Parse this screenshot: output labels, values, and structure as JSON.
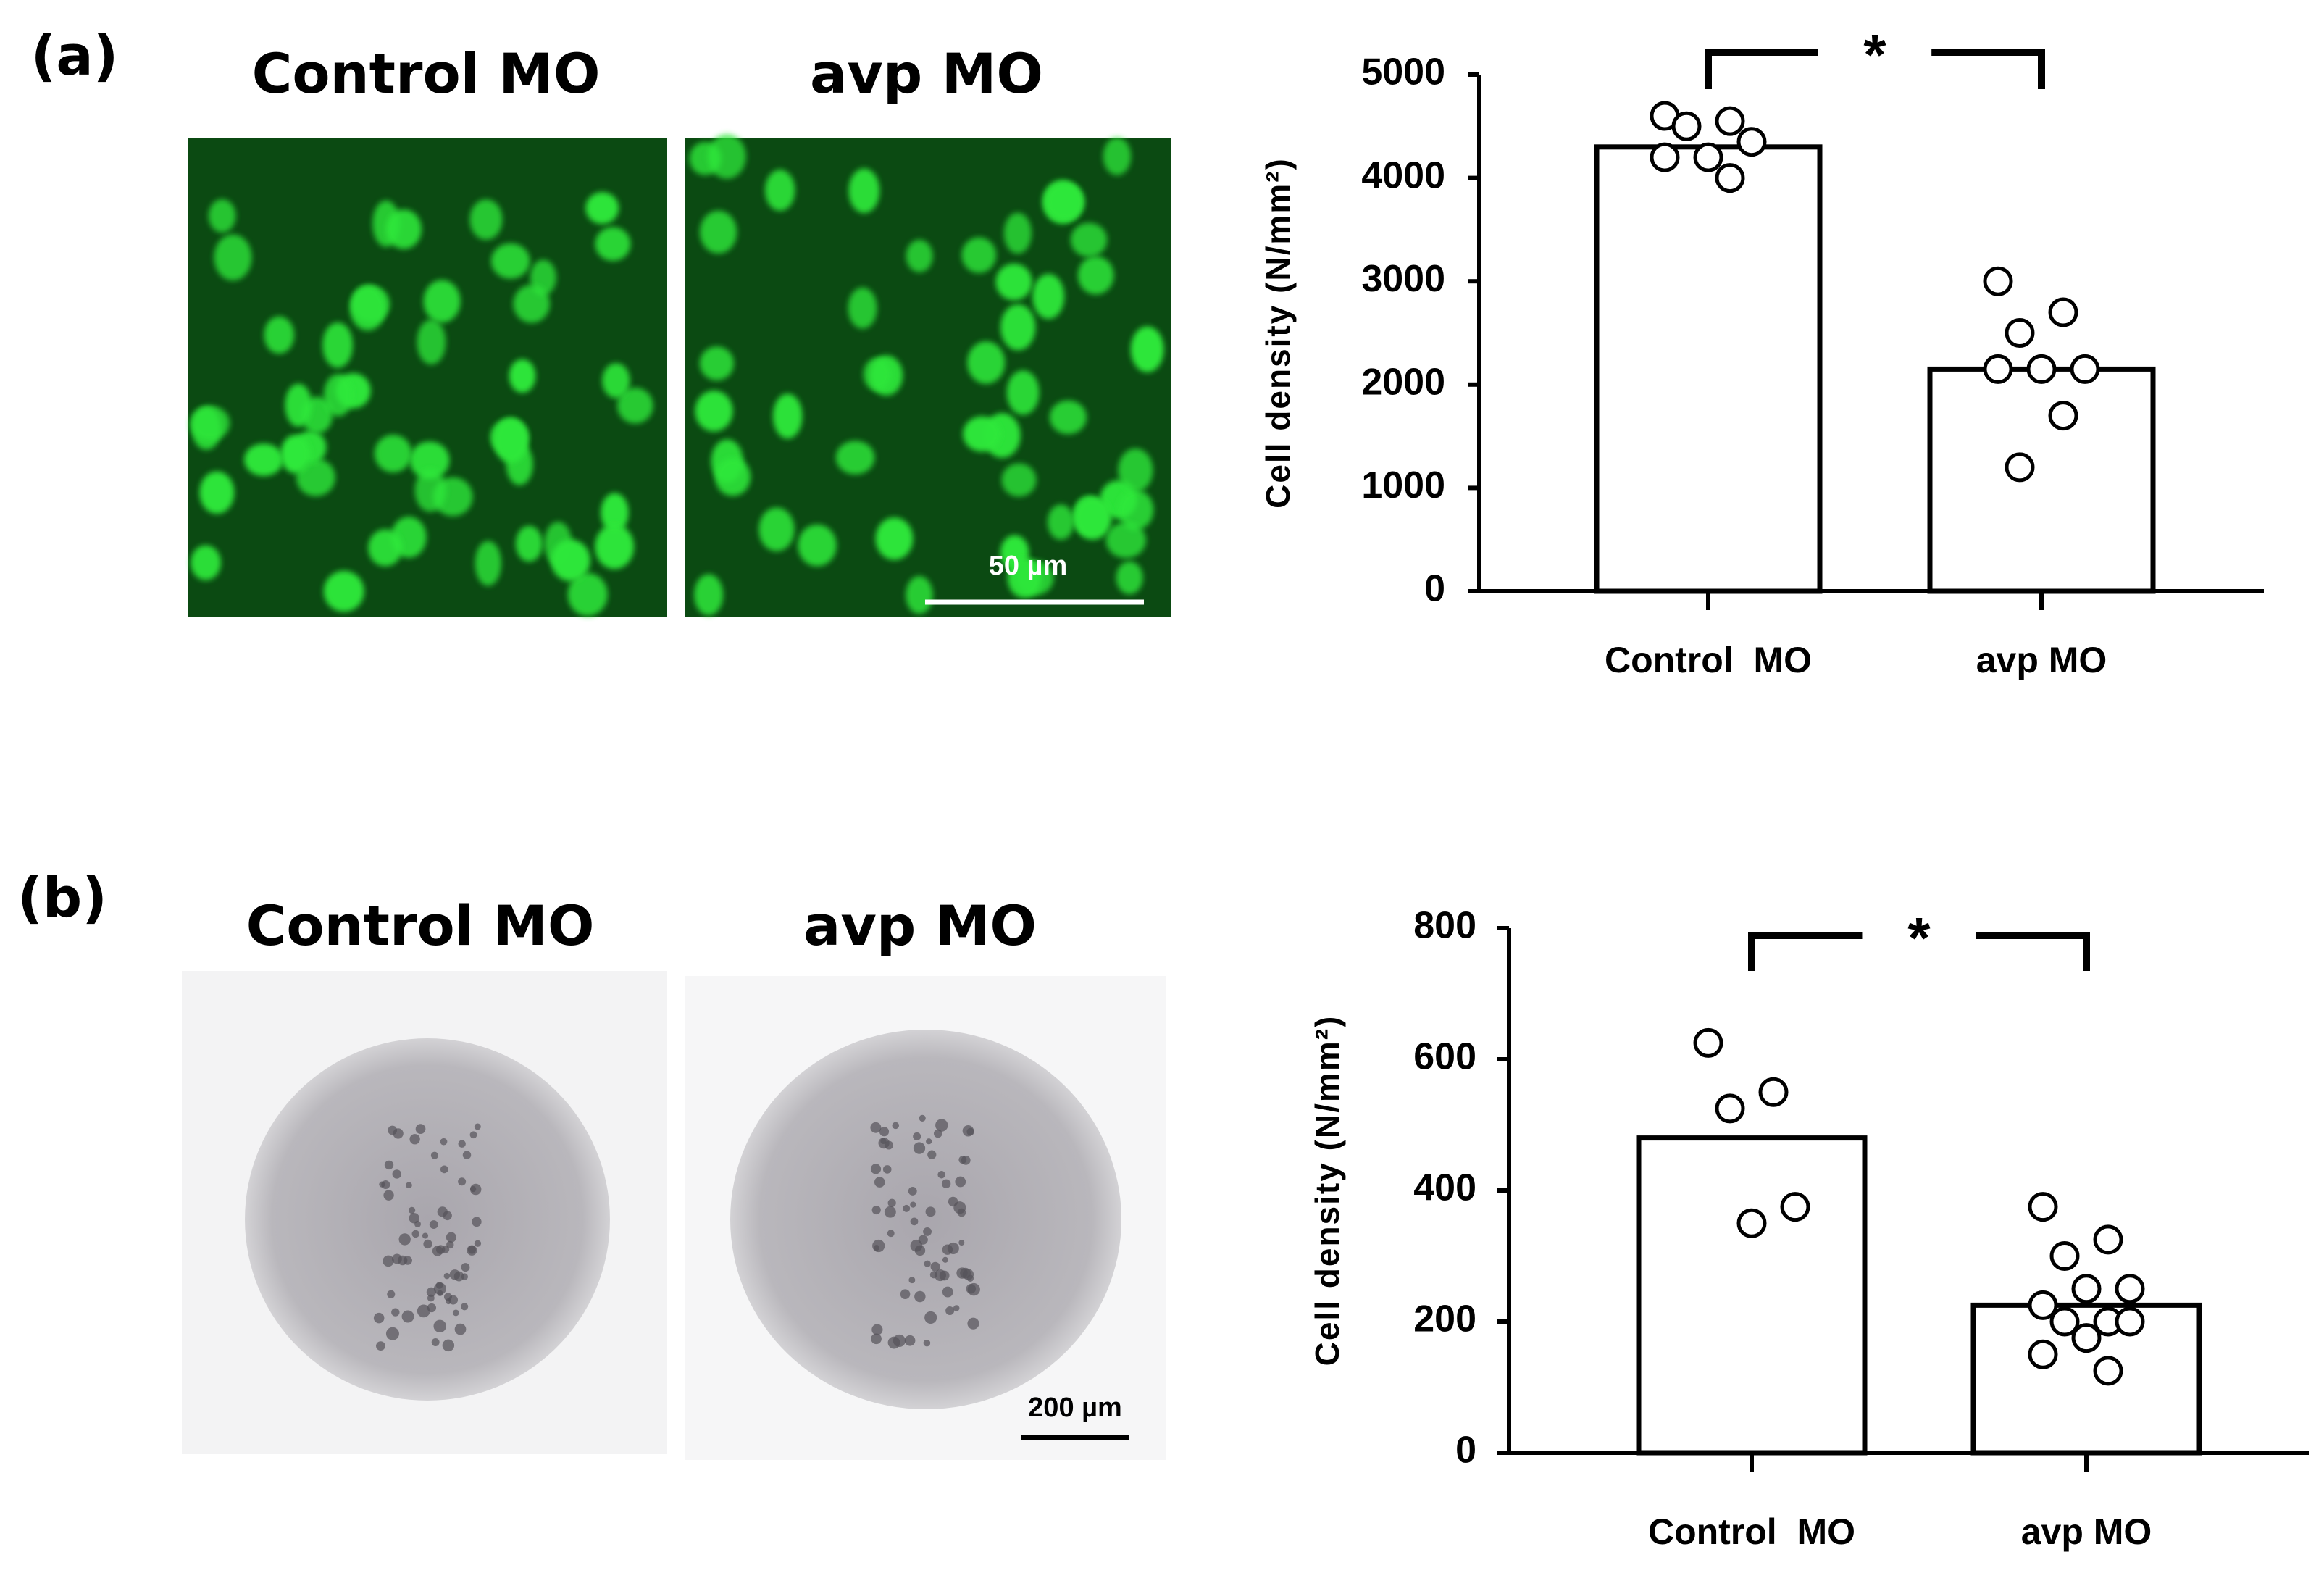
{
  "panels": [
    {
      "label": "(a)",
      "image_titles": [
        "Control MO",
        "avp MO"
      ],
      "scale_bar": "50 µm"
    },
    {
      "label": "(b)",
      "image_titles": [
        "Control MO",
        "avp MO"
      ],
      "scale_bar": "200 µm"
    }
  ],
  "chart_data": [
    {
      "type": "bar",
      "ylabel": "Cell density (N/mm²)",
      "categories": [
        "Control  MO",
        "avp MO"
      ],
      "values": [
        4300,
        2150
      ],
      "points": [
        [
          4600,
          4550,
          4500,
          4350,
          4200,
          4200,
          4000
        ],
        [
          3000,
          2700,
          2500,
          2150,
          2150,
          2150,
          1700,
          1200
        ]
      ],
      "color": "#ffffff",
      "annotation": "*",
      "ylim": [
        0,
        5000
      ],
      "yticks": [
        0,
        1000,
        2000,
        3000,
        4000,
        5000
      ]
    },
    {
      "type": "bar",
      "ylabel": "Cell density (N/mm²)",
      "categories": [
        "Control  MO",
        "avp MO"
      ],
      "values": [
        480,
        225
      ],
      "points": [
        [
          625,
          550,
          525,
          375,
          350
        ],
        [
          375,
          325,
          300,
          250,
          250,
          225,
          200,
          200,
          200,
          175,
          150,
          125
        ]
      ],
      "color": "#ffffff",
      "annotation": "*",
      "ylim": [
        0,
        800
      ],
      "yticks": [
        0,
        200,
        400,
        600,
        800
      ]
    }
  ]
}
